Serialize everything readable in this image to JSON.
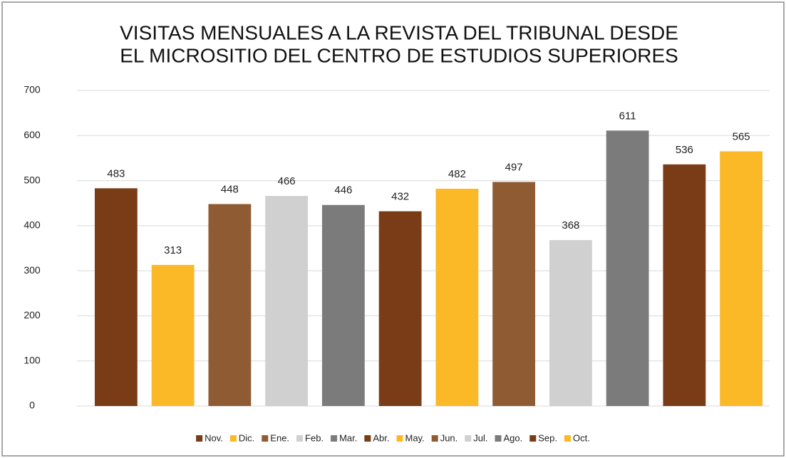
{
  "chart_data": {
    "type": "bar",
    "title": [
      "VISITAS MENSUALES A LA REVISTA DEL TRIBUNAL DESDE",
      "EL MICROSITIO DEL CENTRO DE ESTUDIOS SUPERIORES"
    ],
    "categories": [
      "Nov.",
      "Dic.",
      "Ene.",
      "Feb.",
      "Mar.",
      "Abr.",
      "May.",
      "Jun.",
      "Jul.",
      "Ago.",
      "Sep.",
      "Oct."
    ],
    "values": [
      483,
      313,
      448,
      466,
      446,
      432,
      482,
      497,
      368,
      611,
      536,
      565
    ],
    "colors": [
      "#7a3b17",
      "#fbb928",
      "#8e5b32",
      "#d0d0d0",
      "#7b7b7b",
      "#7a3b17",
      "#fbb928",
      "#8e5b32",
      "#d0d0d0",
      "#7b7b7b",
      "#7a3b17",
      "#fbb928"
    ],
    "ylim": [
      0,
      700
    ],
    "yticks": [
      0,
      100,
      200,
      300,
      400,
      500,
      600,
      700
    ],
    "grid": true,
    "legend": "bottom"
  }
}
